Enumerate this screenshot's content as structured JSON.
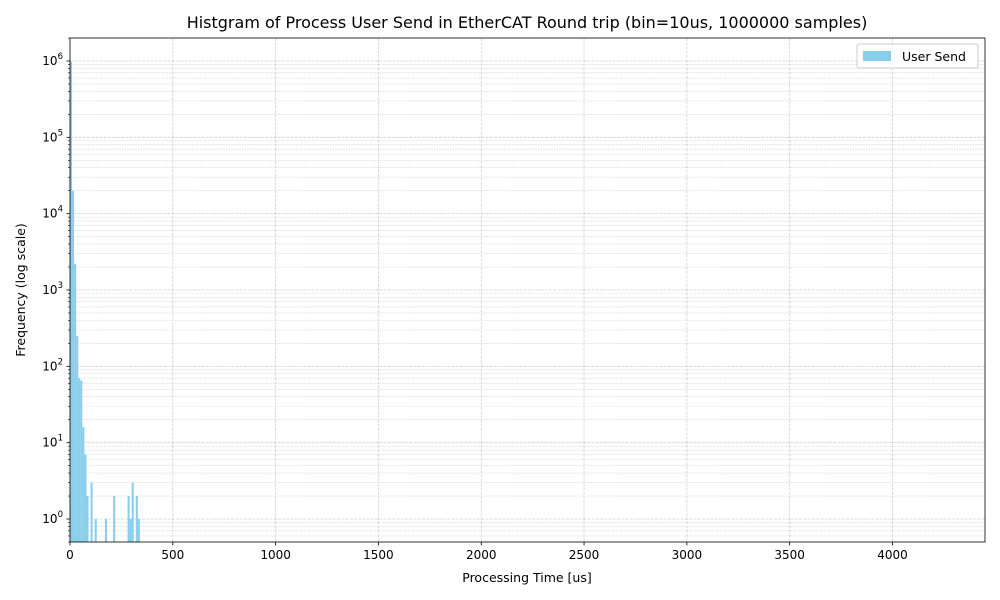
{
  "chart_data": {
    "type": "bar",
    "title": "Histgram of Process User Send in EtherCAT Round trip (bin=10us, 1000000 samples)",
    "xlabel": "Processing Time [us]",
    "ylabel": "Frequency (log scale)",
    "xlim": [
      0,
      4450
    ],
    "ylim": [
      0.5,
      2000000
    ],
    "x_scale": "linear",
    "y_scale": "log",
    "x_ticks": [
      "0",
      "500",
      "1000",
      "1500",
      "2000",
      "2500",
      "3000",
      "3500",
      "4000"
    ],
    "x_tick_values": [
      0,
      500,
      1000,
      1500,
      2000,
      2500,
      3000,
      3500,
      4000
    ],
    "y_tick_values": [
      1,
      10,
      100,
      1000,
      10000,
      100000,
      1000000
    ],
    "y_tick_labels": [
      {
        "base": "10",
        "exp": "0"
      },
      {
        "base": "10",
        "exp": "1"
      },
      {
        "base": "10",
        "exp": "2"
      },
      {
        "base": "10",
        "exp": "3"
      },
      {
        "base": "10",
        "exp": "4"
      },
      {
        "base": "10",
        "exp": "5"
      },
      {
        "base": "10",
        "exp": "6"
      }
    ],
    "grid": true,
    "grid_minor": true,
    "legend_position": "top-right",
    "bin_width": 10,
    "series": [
      {
        "name": "User Send",
        "color": "#87ceeb",
        "bins": [
          {
            "x": 0,
            "count": 977000
          },
          {
            "x": 10,
            "count": 20000
          },
          {
            "x": 20,
            "count": 2200
          },
          {
            "x": 30,
            "count": 250
          },
          {
            "x": 40,
            "count": 70
          },
          {
            "x": 50,
            "count": 65
          },
          {
            "x": 60,
            "count": 16
          },
          {
            "x": 70,
            "count": 7
          },
          {
            "x": 80,
            "count": 2
          },
          {
            "x": 100,
            "count": 3
          },
          {
            "x": 120,
            "count": 1
          },
          {
            "x": 170,
            "count": 1
          },
          {
            "x": 210,
            "count": 2
          },
          {
            "x": 280,
            "count": 2
          },
          {
            "x": 290,
            "count": 1
          },
          {
            "x": 300,
            "count": 3
          },
          {
            "x": 320,
            "count": 2
          },
          {
            "x": 330,
            "count": 1
          }
        ]
      }
    ]
  }
}
